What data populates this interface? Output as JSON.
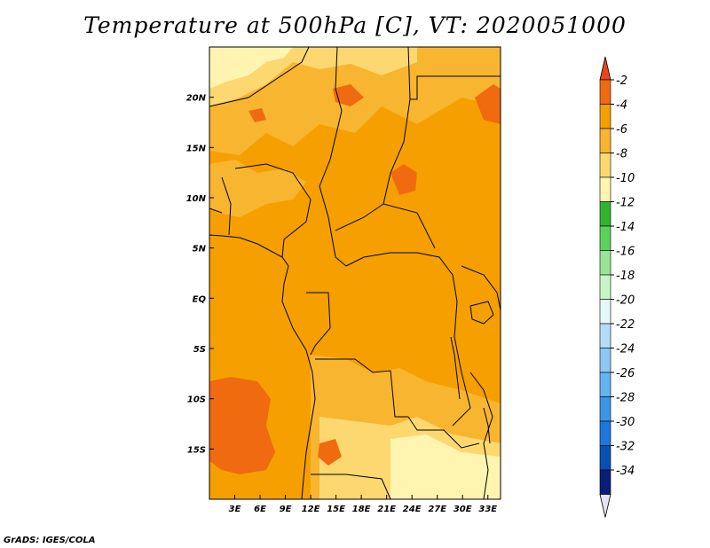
{
  "title": "Temperature at 500hPa [C], VT: 2020051000",
  "footer": "GrADS: IGES/COLA",
  "map": {
    "lon_range": [
      0,
      34.5
    ],
    "lat_range": [
      -20,
      25
    ],
    "lat_ticks": [
      {
        "value": 20,
        "label": "20N"
      },
      {
        "value": 15,
        "label": "15N"
      },
      {
        "value": 10,
        "label": "10N"
      },
      {
        "value": 5,
        "label": "5N"
      },
      {
        "value": 0,
        "label": "EQ"
      },
      {
        "value": -5,
        "label": "5S"
      },
      {
        "value": -10,
        "label": "10S"
      },
      {
        "value": -15,
        "label": "15S"
      }
    ],
    "lon_ticks": [
      {
        "value": 3,
        "label": "3E"
      },
      {
        "value": 6,
        "label": "6E"
      },
      {
        "value": 9,
        "label": "9E"
      },
      {
        "value": 12,
        "label": "12E"
      },
      {
        "value": 15,
        "label": "15E"
      },
      {
        "value": 18,
        "label": "18E"
      },
      {
        "value": 21,
        "label": "21E"
      },
      {
        "value": 24,
        "label": "24E"
      },
      {
        "value": 27,
        "label": "27E"
      },
      {
        "value": 30,
        "label": "30E"
      },
      {
        "value": 33,
        "label": "33E"
      }
    ],
    "colors": {
      "c4_2": "#f06a10",
      "c6_4": "#f5a000",
      "c8_6": "#f8b530",
      "c10_8": "#fdd870",
      "c12_10": "#fff4b0"
    }
  },
  "colorbar": {
    "labels": [
      "-2",
      "-4",
      "-6",
      "-8",
      "-10",
      "-12",
      "-14",
      "-16",
      "-18",
      "-20",
      "-22",
      "-24",
      "-26",
      "-28",
      "-30",
      "-32",
      "-34"
    ],
    "top_arrow_color": "#e8461c",
    "bottom_arrow_color": "#e4e4f4",
    "segments": [
      "#f06a10",
      "#f5a000",
      "#f8b530",
      "#fdd870",
      "#fff4b0",
      "#32b432",
      "#5cd25c",
      "#96e696",
      "#c8f5c8",
      "#e4f8f8",
      "#b4dcf8",
      "#8cc8f5",
      "#64b4f0",
      "#3c96e6",
      "#1e78dc",
      "#0a50b4",
      "#0a1e78"
    ]
  }
}
